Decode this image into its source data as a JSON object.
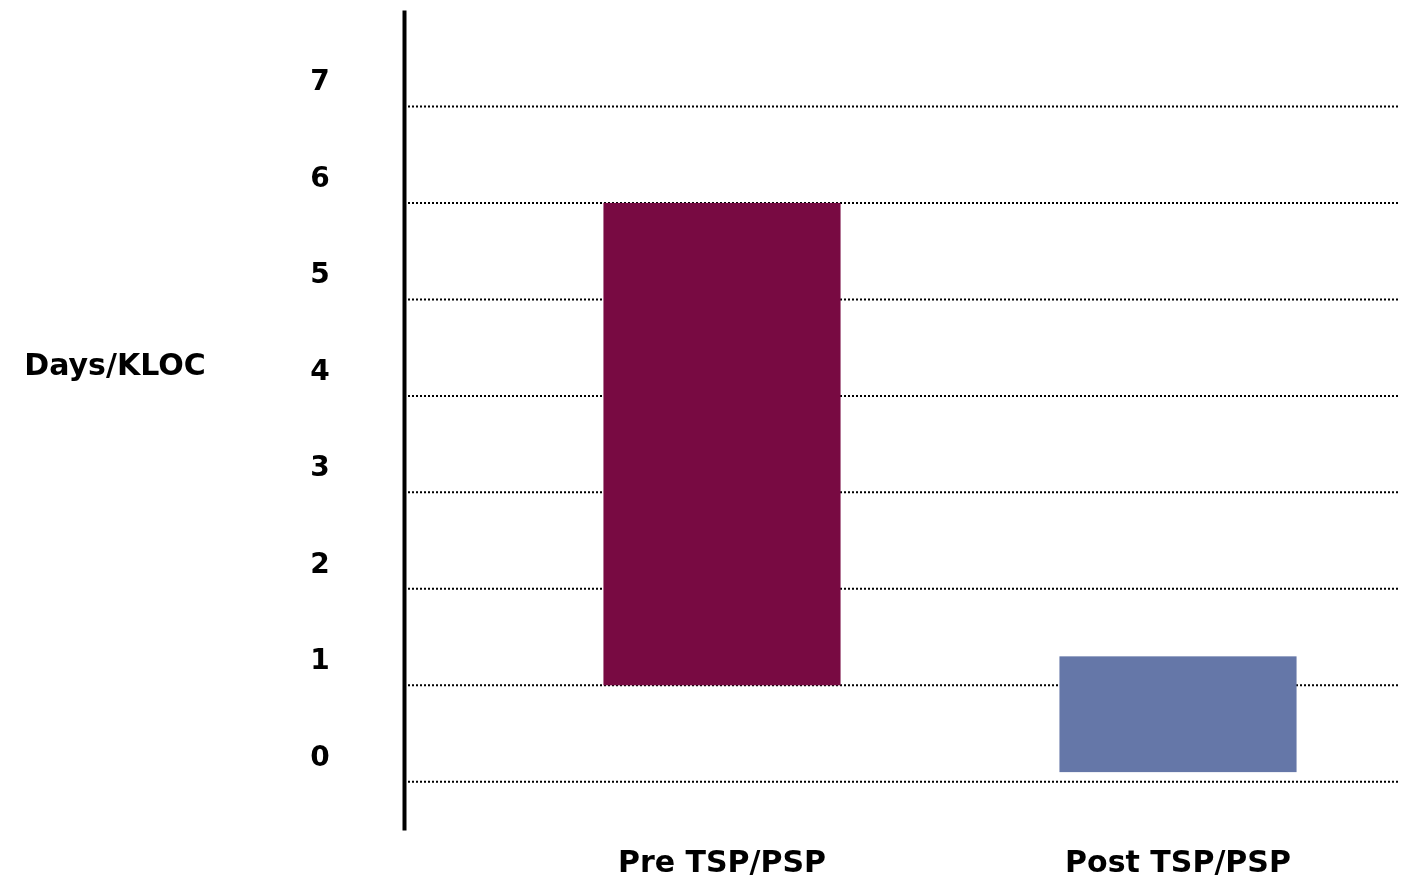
{
  "chart_data": {
    "type": "bar",
    "ylabel": "Days/KLOC",
    "categories": [
      "Pre TSP/PSP",
      "Post TSP/PSP"
    ],
    "values": [
      5,
      1.2
    ],
    "base": [
      1,
      0.1
    ],
    "colors": [
      "#780a42",
      "#6577a8"
    ],
    "ylim": [
      -0.5,
      8
    ],
    "yticks": [
      0,
      1,
      2,
      3,
      4,
      5,
      6,
      7
    ],
    "grid": "y",
    "line_style": "dotted"
  }
}
